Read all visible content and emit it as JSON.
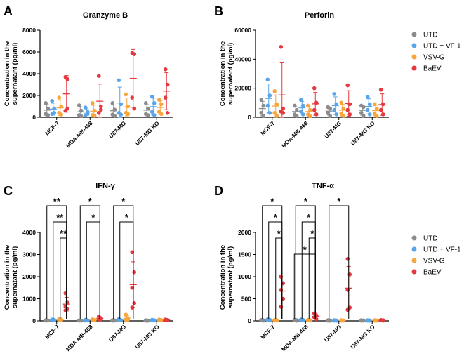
{
  "colors": {
    "UTD": "#8c8c8c",
    "UTD + VF-1": "#59a5e8",
    "VSV-G": "#f7a53c",
    "BaEV": "#e3393f"
  },
  "chart_data": [
    {
      "type": "scatter",
      "label": "A",
      "title": "Granzyme B",
      "ylabel": [
        "Concentration in the",
        "supernatant (pg/ml)"
      ],
      "ylim": [
        0,
        8000
      ],
      "yticks": [
        0,
        2000,
        4000,
        6000,
        8000
      ],
      "categories": [
        "MCF-7",
        "MDA-MB-468",
        "U87-MG",
        "U87-MG KO"
      ],
      "groups": [
        "UTD",
        "UTD + VF-1",
        "VSV-G",
        "BaEV"
      ],
      "series": [
        {
          "name": "UTD",
          "points": [
            [
              300,
              800,
              1300,
              200
            ],
            [
              200,
              600,
              1100,
              100
            ],
            [
              250,
              700,
              1300,
              150
            ],
            [
              300,
              800,
              1300,
              200
            ]
          ]
        },
        {
          "name": "UTD + VF-1",
          "points": [
            [
              300,
              800,
              1500,
              400
            ],
            [
              200,
              500,
              900,
              300
            ],
            [
              400,
              1200,
              3400,
              250
            ],
            [
              500,
              1300,
              1900,
              200
            ]
          ]
        },
        {
          "name": "VSV-G",
          "points": [
            [
              400,
              1000,
              1800,
              250
            ],
            [
              200,
              600,
              1300,
              150
            ],
            [
              400,
              1000,
              2100,
              300
            ],
            [
              500,
              1200,
              1600,
              300
            ]
          ]
        },
        {
          "name": "BaEV",
          "points": [
            [
              3700,
              3500,
              600,
              800
            ],
            [
              3800,
              1000,
              400,
              700
            ],
            [
              5900,
              5800,
              1800,
              800
            ],
            [
              4400,
              3000,
              1800,
              400
            ]
          ]
        }
      ]
    },
    {
      "type": "scatter",
      "label": "B",
      "title": "Perforin",
      "ylabel": [
        "Concentration in the",
        "supernatant (pg/ml)"
      ],
      "ylim": [
        0,
        60000
      ],
      "yticks": [
        0,
        20000,
        40000,
        60000
      ],
      "categories": [
        "MCF-7",
        "MDA-MB-468",
        "U87-MG",
        "U87-MG KO"
      ],
      "groups": [
        "UTD",
        "UTD + VF-1",
        "VSV-G",
        "BaEV"
      ],
      "series": [
        {
          "name": "UTD",
          "points": [
            [
              3000,
              8000,
              12000,
              1000
            ],
            [
              2000,
              5000,
              8000,
              800
            ],
            [
              3000,
              6000,
              7000,
              1000
            ],
            [
              3000,
              7000,
              8000,
              1000
            ]
          ]
        },
        {
          "name": "UTD + VF-1",
          "points": [
            [
              8000,
              15000,
              26000,
              3000
            ],
            [
              4000,
              8000,
              12000,
              2000
            ],
            [
              5000,
              9000,
              16000,
              2000
            ],
            [
              5000,
              9000,
              14000,
              2000
            ]
          ]
        },
        {
          "name": "VSV-G",
          "points": [
            [
              3000,
              9000,
              18000,
              1000
            ],
            [
              2000,
              5000,
              8000,
              800
            ],
            [
              2500,
              6000,
              10000,
              1000
            ],
            [
              2500,
              6000,
              9000,
              800
            ]
          ]
        },
        {
          "name": "BaEV",
          "points": [
            [
              48500,
              6000,
              4000,
              3000
            ],
            [
              20000,
              10000,
              5000,
              2000
            ],
            [
              22000,
              9000,
              5000,
              2000
            ],
            [
              19000,
              9000,
              5000,
              2000
            ]
          ]
        }
      ]
    },
    {
      "type": "scatter",
      "label": "C",
      "title": "IFN-γ",
      "ylabel": [
        "Concentration in the",
        "supernatant (pg/ml)"
      ],
      "ylim": [
        0,
        4000
      ],
      "yticks": [
        0,
        1000,
        2000,
        3000,
        4000
      ],
      "categories": [
        "MCF-7",
        "MDA-MB-468",
        "U87-MG",
        "U87-MG KO"
      ],
      "groups": [
        "UTD",
        "UTD + VF-1",
        "VSV-G",
        "BaEV"
      ],
      "series": [
        {
          "name": "UTD",
          "points": [
            [
              10,
              20,
              30,
              15
            ],
            [
              10,
              15,
              20,
              10
            ],
            [
              10,
              20,
              30,
              15
            ],
            [
              10,
              15,
              25,
              10
            ]
          ]
        },
        {
          "name": "UTD + VF-1",
          "points": [
            [
              20,
              40,
              60,
              30
            ],
            [
              15,
              30,
              50,
              20
            ],
            [
              20,
              40,
              80,
              30
            ],
            [
              15,
              30,
              50,
              20
            ]
          ]
        },
        {
          "name": "VSV-G",
          "points": [
            [
              30,
              60,
              100,
              40
            ],
            [
              20,
              40,
              70,
              30
            ],
            [
              40,
              120,
              280,
              60
            ],
            [
              20,
              40,
              60,
              30
            ]
          ]
        },
        {
          "name": "BaEV",
          "points": [
            [
              1250,
              850,
              650,
              550,
              480
            ],
            [
              200,
              120,
              80,
              60
            ],
            [
              3100,
              2200,
              1500,
              800,
              600
            ],
            [
              60,
              40,
              30,
              20
            ]
          ]
        }
      ],
      "significance": [
        {
          "group_index": 0,
          "label": "**"
        },
        {
          "group_index": 0,
          "label": "**"
        },
        {
          "group_index": 0,
          "label": "**"
        },
        {
          "group_index": 1,
          "label": "*"
        },
        {
          "group_index": 1,
          "label": "*"
        },
        {
          "group_index": 2,
          "label": "*"
        },
        {
          "group_index": 2,
          "label": "*"
        }
      ]
    },
    {
      "type": "scatter",
      "label": "D",
      "title": "TNF-α",
      "ylabel": [
        "Concentration in the",
        "supernatant (pg/ml)"
      ],
      "ylim": [
        0,
        2000
      ],
      "yticks": [
        0,
        500,
        1000,
        1500,
        2000
      ],
      "categories": [
        "MCF-7",
        "MDA-MB-468",
        "U87-MG",
        "U87-MG KO"
      ],
      "groups": [
        "UTD",
        "UTD + VF-1",
        "VSV-G",
        "BaEV"
      ],
      "series": [
        {
          "name": "UTD",
          "points": [
            [
              10,
              15,
              20,
              5
            ],
            [
              10,
              15,
              20,
              5
            ],
            [
              5,
              10,
              15,
              5
            ],
            [
              5,
              10,
              15,
              5
            ]
          ]
        },
        {
          "name": "UTD + VF-1",
          "points": [
            [
              15,
              25,
              35,
              10
            ],
            [
              10,
              20,
              30,
              10
            ],
            [
              5,
              10,
              15,
              5
            ],
            [
              5,
              10,
              15,
              5
            ]
          ]
        },
        {
          "name": "VSV-G",
          "points": [
            [
              10,
              15,
              20,
              5
            ],
            [
              10,
              15,
              20,
              5
            ],
            [
              5,
              10,
              15,
              5
            ],
            [
              5,
              10,
              15,
              5
            ]
          ]
        },
        {
          "name": "BaEV",
          "points": [
            [
              1000,
              850,
              700,
              500,
              320
            ],
            [
              170,
              120,
              80,
              40
            ],
            [
              1400,
              1050,
              700,
              300,
              250
            ],
            [
              20,
              15,
              10,
              5
            ]
          ]
        }
      ],
      "significance": [
        {
          "group_index": 0,
          "label": "*"
        },
        {
          "group_index": 0,
          "label": "*"
        },
        {
          "group_index": 0,
          "label": "*"
        },
        {
          "group_index": 1,
          "label": "*"
        },
        {
          "group_index": 1,
          "label": "*"
        },
        {
          "group_index": 1,
          "label": "*"
        },
        {
          "group_index": 1,
          "label": "*"
        },
        {
          "group_index": 2,
          "label": "*"
        }
      ]
    }
  ],
  "legend": {
    "position": "right",
    "entries": [
      "UTD",
      "UTD + VF-1",
      "VSV-G",
      "BaEV"
    ]
  }
}
